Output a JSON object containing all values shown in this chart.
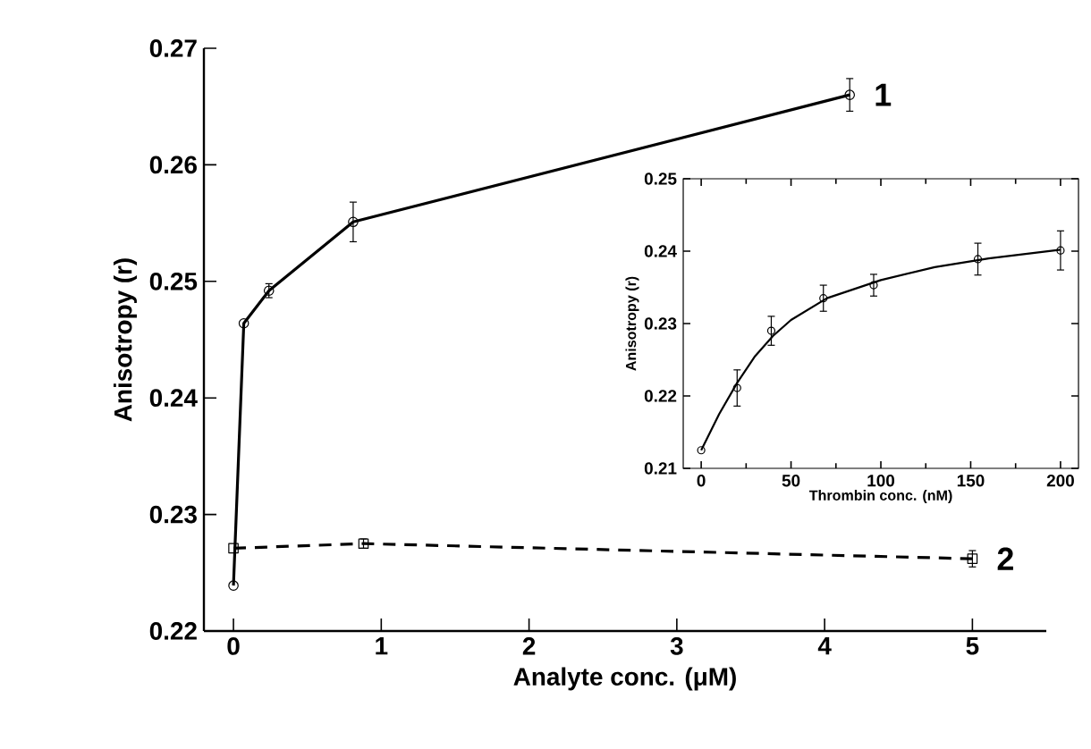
{
  "chart_data": [
    {
      "type": "line",
      "xlabel": "Analyte conc. (μM)",
      "ylabel": "Anisotropy (r)",
      "xlim": [
        -0.2,
        5.5
      ],
      "ylim": [
        0.22,
        0.27
      ],
      "xticks": [
        0,
        1,
        2,
        3,
        4,
        5
      ],
      "yticks": [
        0.22,
        0.23,
        0.24,
        0.25,
        0.26,
        0.27
      ],
      "series": [
        {
          "name": "1",
          "color": "#000000",
          "marker": "circle",
          "line_style": "solid",
          "x": [
            0,
            0.07,
            0.24,
            0.81,
            4.17
          ],
          "values": [
            0.2239,
            0.2464,
            0.2492,
            0.2551,
            0.266
          ],
          "errors": [
            null,
            null,
            0.0006,
            0.0017,
            0.0014
          ]
        },
        {
          "name": "2",
          "color": "#000000",
          "marker": "square",
          "line_style": "dashed",
          "x": [
            0,
            0.88,
            5.0
          ],
          "values": [
            0.2271,
            0.2275,
            0.2262
          ],
          "errors": [
            null,
            0.0004,
            0.0007
          ]
        }
      ]
    },
    {
      "type": "scatter",
      "xlabel": "Thrombin conc. (nM)",
      "ylabel": "Anisotropy (r)",
      "xlim": [
        -10,
        210
      ],
      "ylim": [
        0.21,
        0.25
      ],
      "xticks": [
        0,
        50,
        100,
        150,
        200
      ],
      "yticks": [
        0.21,
        0.22,
        0.23,
        0.24,
        0.25
      ],
      "series": [
        {
          "type": "scatter",
          "color": "#000000",
          "marker": "circle",
          "x": [
            0,
            20,
            39,
            68,
            96,
            154,
            200
          ],
          "values": [
            0.2125,
            0.2211,
            0.229,
            0.2335,
            0.2353,
            0.2389,
            0.2401
          ],
          "errors": [
            null,
            0.0025,
            0.002,
            0.0018,
            0.0015,
            0.0022,
            0.0027
          ]
        },
        {
          "type": "line",
          "color": "#000000",
          "marker": "none",
          "line_style": "solid",
          "x": [
            0,
            10,
            20,
            30,
            40,
            50,
            70,
            100,
            130,
            160,
            200
          ],
          "values": [
            0.2125,
            0.2175,
            0.2218,
            0.2255,
            0.2283,
            0.2305,
            0.2335,
            0.236,
            0.2378,
            0.239,
            0.2402
          ]
        }
      ]
    }
  ]
}
